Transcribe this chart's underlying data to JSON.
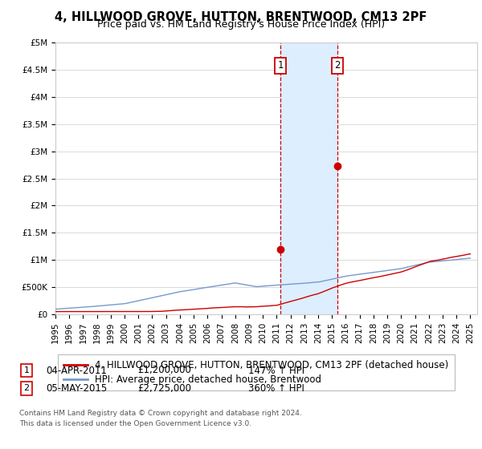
{
  "title": "4, HILLWOOD GROVE, HUTTON, BRENTWOOD, CM13 2PF",
  "subtitle": "Price paid vs. HM Land Registry's House Price Index (HPI)",
  "xlim": [
    1995,
    2025.5
  ],
  "ylim": [
    0,
    5000000
  ],
  "yticks": [
    0,
    500000,
    1000000,
    1500000,
    2000000,
    2500000,
    3000000,
    3500000,
    4000000,
    4500000,
    5000000
  ],
  "ytick_labels": [
    "£0",
    "£500K",
    "£1M",
    "£1.5M",
    "£2M",
    "£2.5M",
    "£3M",
    "£3.5M",
    "£4M",
    "£4.5M",
    "£5M"
  ],
  "xticks": [
    1995,
    1996,
    1997,
    1998,
    1999,
    2000,
    2001,
    2002,
    2003,
    2004,
    2005,
    2006,
    2007,
    2008,
    2009,
    2010,
    2011,
    2012,
    2013,
    2014,
    2015,
    2016,
    2017,
    2018,
    2019,
    2020,
    2021,
    2022,
    2023,
    2024,
    2025
  ],
  "sale1_x": 2011.27,
  "sale1_y": 1200000,
  "sale1_label": "1",
  "sale2_x": 2015.37,
  "sale2_y": 2725000,
  "sale2_label": "2",
  "shade_x1": 2011.27,
  "shade_x2": 2015.37,
  "property_line_color": "#cc0000",
  "hpi_line_color": "#7799cc",
  "marker_color": "#cc0000",
  "shade_color": "#ddeeff",
  "vline_color": "#cc0000",
  "grid_color": "#cccccc",
  "background_color": "#ffffff",
  "legend_property": "4, HILLWOOD GROVE, HUTTON, BRENTWOOD, CM13 2PF (detached house)",
  "legend_hpi": "HPI: Average price, detached house, Brentwood",
  "ann1_num": "1",
  "ann1_date": "04-APR-2011",
  "ann1_price": "£1,200,000",
  "ann1_hpi": "147% ↑ HPI",
  "ann2_num": "2",
  "ann2_date": "05-MAY-2015",
  "ann2_price": "£2,725,000",
  "ann2_hpi": "360% ↑ HPI",
  "footnote1": "Contains HM Land Registry data © Crown copyright and database right 2024.",
  "footnote2": "This data is licensed under the Open Government Licence v3.0.",
  "title_fontsize": 10.5,
  "subtitle_fontsize": 9,
  "tick_fontsize": 7.5,
  "legend_fontsize": 8.5,
  "ann_fontsize": 8.5
}
